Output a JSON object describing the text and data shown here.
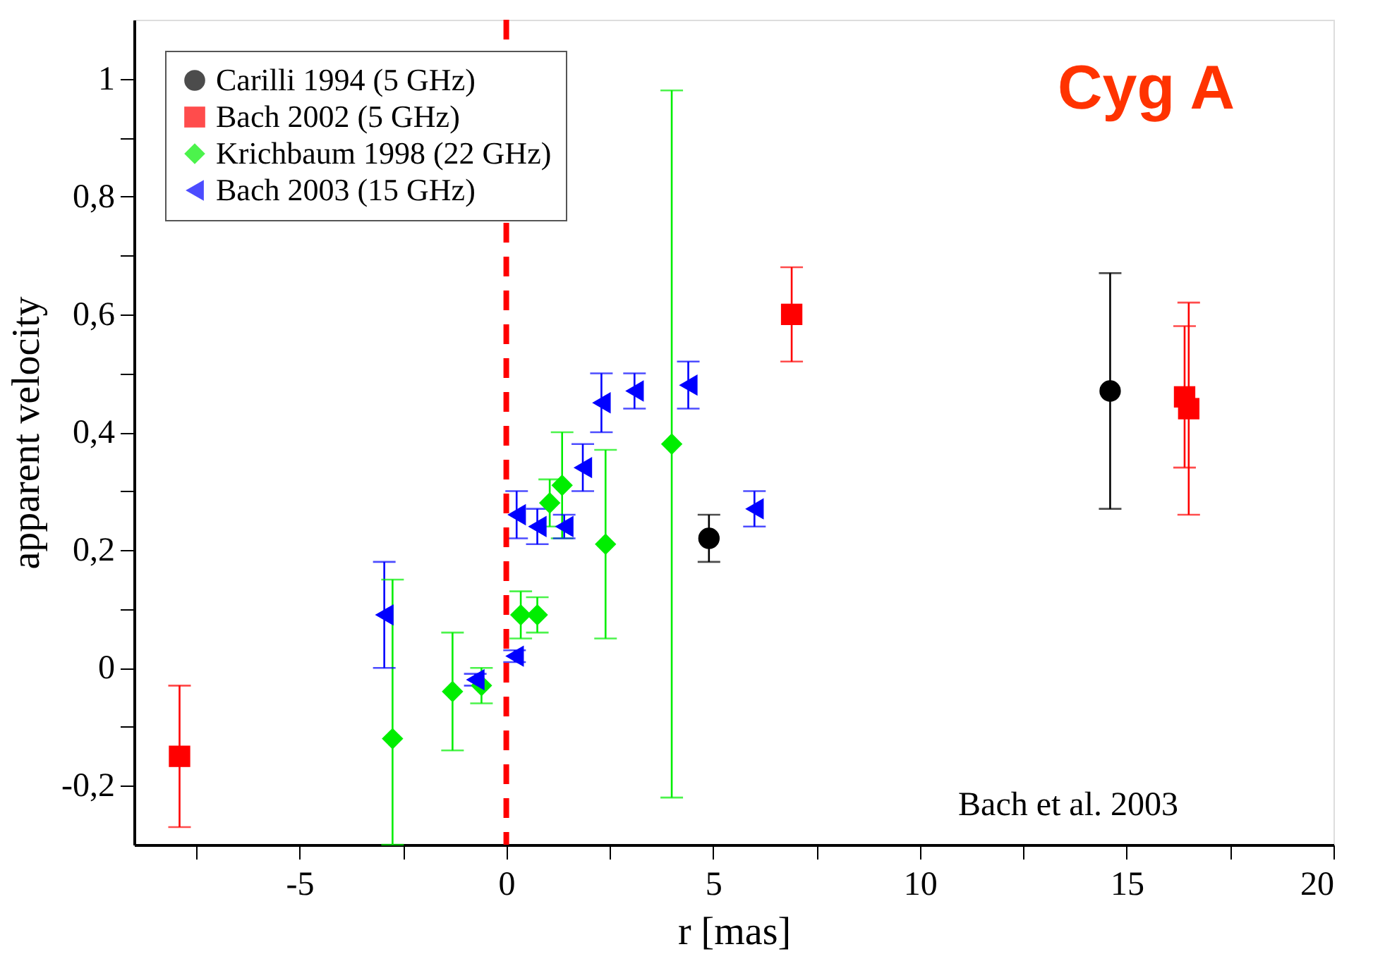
{
  "chart_data": {
    "type": "scatter",
    "xlabel": "r [mas]",
    "ylabel": "apparent velocity",
    "xlim": [
      -9,
      20
    ],
    "ylim": [
      -0.3,
      1.1
    ],
    "xticks": [
      {
        "value": -7.5,
        "label": null
      },
      -5,
      {
        "value": -2.5,
        "label": null
      },
      0,
      {
        "value": 2.5,
        "label": null
      },
      5,
      {
        "value": 7.5,
        "label": null
      },
      10,
      {
        "value": 12.5,
        "label": null
      },
      15,
      {
        "value": 17.5,
        "label": null
      },
      20
    ],
    "yticks": [
      {
        "value": -0.2,
        "label": "-0,2"
      },
      {
        "value": -0.1,
        "label": null
      },
      0,
      {
        "value": 0.1,
        "label": null
      },
      {
        "value": 0.2,
        "label": "0,2"
      },
      {
        "value": 0.3,
        "label": null
      },
      {
        "value": 0.4,
        "label": "0,4"
      },
      {
        "value": 0.5,
        "label": null
      },
      {
        "value": 0.6,
        "label": "0,6"
      },
      {
        "value": 0.7,
        "label": null
      },
      {
        "value": 0.8,
        "label": "0,8"
      },
      {
        "value": 0.9,
        "label": null
      },
      1
    ],
    "grid": false,
    "legend": "top left",
    "series": [
      {
        "name": "Carilli 1994 (5 GHz)",
        "color": "#000000",
        "marker": "circle",
        "x": [
          4.9,
          14.6
        ],
        "values": [
          0.22,
          0.47
        ],
        "errors": [
          [
            0.18,
            0.26
          ],
          [
            0.27,
            0.67
          ]
        ]
      },
      {
        "name": "Bach 2002 (5 GHz)",
        "color": "#ff0000",
        "marker": "square",
        "x": [
          -7.9,
          6.9,
          16.4,
          16.5
        ],
        "values": [
          -0.15,
          0.6,
          0.46,
          0.44
        ],
        "errors": [
          [
            -0.27,
            -0.03
          ],
          [
            0.52,
            0.68
          ],
          [
            0.34,
            0.58
          ],
          [
            0.26,
            0.62
          ]
        ]
      },
      {
        "name": "Krichbaum 1998 (22 GHz)",
        "color": "#00ee00",
        "marker": "diamond",
        "x": [
          -2.75,
          -1.3,
          -0.6,
          0.35,
          0.75,
          1.05,
          1.35,
          2.4,
          4.0
        ],
        "values": [
          -0.12,
          -0.04,
          -0.03,
          0.09,
          0.09,
          0.28,
          0.31,
          0.21,
          0.38
        ],
        "errors": [
          [
            -0.3,
            0.15
          ],
          [
            -0.14,
            0.06
          ],
          [
            -0.06,
            0.0
          ],
          [
            0.05,
            0.13
          ],
          [
            0.06,
            0.12
          ],
          [
            0.24,
            0.32
          ],
          [
            0.22,
            0.4
          ],
          [
            0.05,
            0.37
          ],
          [
            -0.22,
            0.98
          ]
        ]
      },
      {
        "name": "Bach 2003 (15 GHz)",
        "color": "#0000ff",
        "marker": "triangle",
        "x": [
          -2.95,
          -0.75,
          0.2,
          0.25,
          0.75,
          1.4,
          1.85,
          2.3,
          3.1,
          4.4,
          6.0
        ],
        "values": [
          0.09,
          -0.02,
          0.02,
          0.26,
          0.24,
          0.24,
          0.34,
          0.45,
          0.47,
          0.48,
          0.27
        ],
        "errors": [
          [
            0.0,
            0.18
          ],
          [
            -0.03,
            -0.01
          ],
          [
            0.01,
            0.03
          ],
          [
            0.22,
            0.3
          ],
          [
            0.21,
            0.27
          ],
          [
            0.22,
            0.26
          ],
          [
            0.3,
            0.38
          ],
          [
            0.4,
            0.5
          ],
          [
            0.44,
            0.5
          ],
          [
            0.44,
            0.52
          ],
          [
            0.24,
            0.3
          ]
        ]
      }
    ],
    "ref_lines": [
      {
        "axis": "x",
        "value": 0,
        "color": "#ff0000",
        "line_style": "dashed"
      }
    ],
    "annotations": [
      "Cyg A",
      "Bach et al. 2003"
    ]
  }
}
